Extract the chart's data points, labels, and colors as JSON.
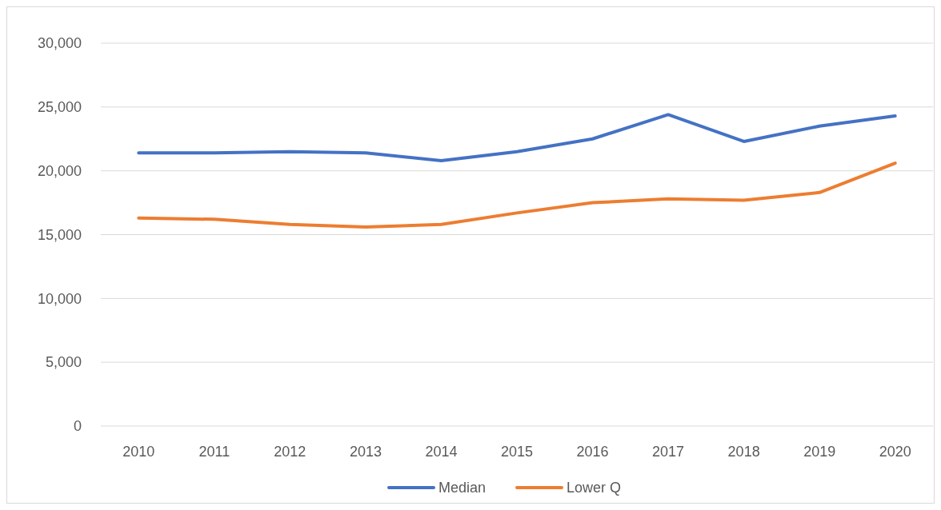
{
  "chart_data": {
    "type": "line",
    "categories": [
      "2010",
      "2011",
      "2012",
      "2013",
      "2014",
      "2015",
      "2016",
      "2017",
      "2018",
      "2019",
      "2020"
    ],
    "series": [
      {
        "name": "Median",
        "color": "#4472c4",
        "values": [
          21400,
          21400,
          21500,
          21400,
          20800,
          21500,
          22500,
          24400,
          22300,
          23500,
          24300
        ]
      },
      {
        "name": "Lower Q",
        "color": "#ed7d31",
        "values": [
          16300,
          16200,
          15800,
          15600,
          15800,
          16700,
          17500,
          17800,
          17700,
          18300,
          20600
        ]
      }
    ],
    "ylim": [
      0,
      30000
    ],
    "yticks": [
      {
        "value": 0,
        "label": "0"
      },
      {
        "value": 5000,
        "label": "5,000"
      },
      {
        "value": 10000,
        "label": "10,000"
      },
      {
        "value": 15000,
        "label": "15,000"
      },
      {
        "value": 20000,
        "label": "20,000"
      },
      {
        "value": 25000,
        "label": "25,000"
      },
      {
        "value": 30000,
        "label": "30,000"
      }
    ],
    "grid": "y",
    "legend": "bottom",
    "marker": "none",
    "line_style": "solid"
  }
}
